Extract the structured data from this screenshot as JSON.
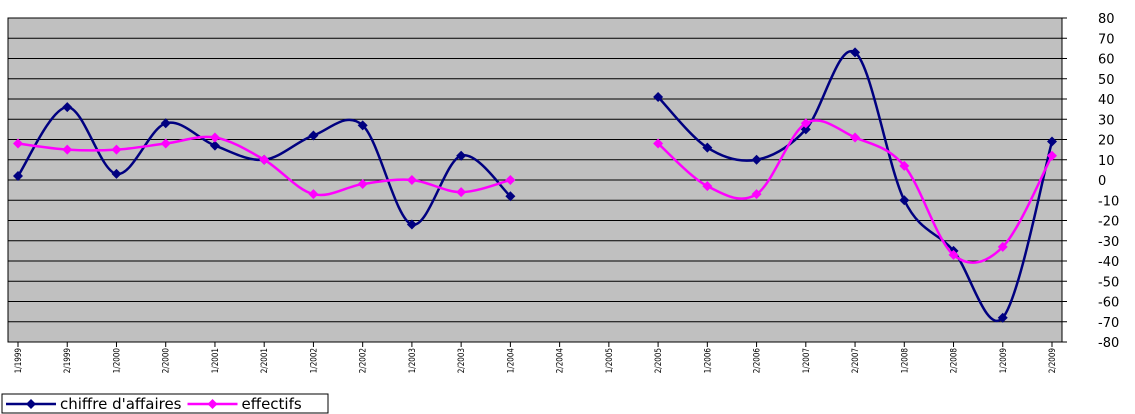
{
  "chart_data": {
    "type": "line",
    "categories": [
      "1/1999",
      "2/1999",
      "1/2000",
      "2/2000",
      "1/2001",
      "2/2001",
      "1/2002",
      "2/2002",
      "1/2003",
      "2/2003",
      "1/2004",
      "2/2004",
      "1/2005",
      "2/2005",
      "1/2006",
      "2/2006",
      "1/2007",
      "2/2007",
      "1/2008",
      "2/2008",
      "1/2009",
      "2/2009"
    ],
    "series": [
      {
        "name": "chiffre d'affaires",
        "color": "#000080",
        "values": [
          2,
          36,
          3,
          28,
          17,
          10,
          22,
          27,
          -22,
          12,
          -8,
          null,
          null,
          41,
          16,
          10,
          25,
          63,
          -10,
          -35,
          -68,
          19
        ]
      },
      {
        "name": "effectifs",
        "color": "#ff00ff",
        "values": [
          18,
          15,
          15,
          18,
          21,
          10,
          -7,
          -2,
          0,
          -6,
          0,
          null,
          null,
          18,
          -3,
          -7,
          28,
          21,
          7,
          -37,
          -33,
          12
        ]
      }
    ],
    "ylim": [
      -80,
      80
    ],
    "yticks": [
      -80,
      -70,
      -60,
      -50,
      -40,
      -30,
      -20,
      -10,
      0,
      10,
      20,
      30,
      40,
      50,
      60,
      70,
      80
    ],
    "grid": true,
    "smooth": true,
    "legend": "bottom-left"
  }
}
